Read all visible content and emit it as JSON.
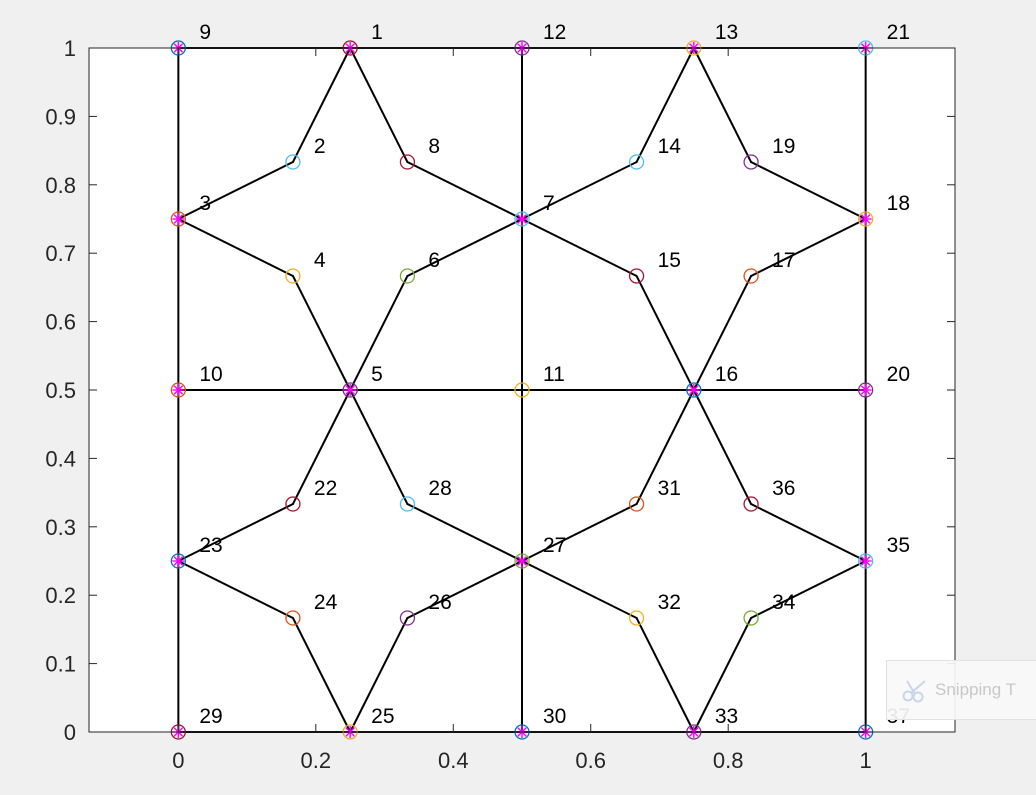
{
  "chart_data": {
    "type": "scatter",
    "title": "",
    "xlabel": "",
    "ylabel": "",
    "xlim": [
      -0.13,
      1.13
    ],
    "ylim": [
      0,
      1
    ],
    "xticks": [
      0,
      0.2,
      0.4,
      0.6,
      0.8,
      1
    ],
    "xtick_labels": [
      "0",
      "0.2",
      "0.4",
      "0.6",
      "0.8",
      "1"
    ],
    "yticks": [
      0,
      0.1,
      0.2,
      0.3,
      0.4,
      0.5,
      0.6,
      0.7,
      0.8,
      0.9,
      1
    ],
    "ytick_labels": [
      "0",
      "0.1",
      "0.2",
      "0.3",
      "0.4",
      "0.5",
      "0.6",
      "0.7",
      "0.8",
      "0.9",
      "1"
    ],
    "grid": false,
    "legend": "none",
    "marker_colors": [
      "#0072BD",
      "#D95319",
      "#EDB120",
      "#7E2F8E",
      "#77AC30",
      "#4DBEEE",
      "#A2142F"
    ],
    "star_color": "#FF00FF",
    "points": [
      {
        "id": "1",
        "x": 0.25,
        "y": 1.0,
        "c": 6,
        "star": true
      },
      {
        "id": "2",
        "x": 0.1667,
        "y": 0.8333,
        "c": 5,
        "star": false
      },
      {
        "id": "3",
        "x": 0.0,
        "y": 0.75,
        "c": 1,
        "star": true
      },
      {
        "id": "4",
        "x": 0.1667,
        "y": 0.6667,
        "c": 2,
        "star": false
      },
      {
        "id": "5",
        "x": 0.25,
        "y": 0.5,
        "c": 3,
        "star": true
      },
      {
        "id": "6",
        "x": 0.3333,
        "y": 0.6667,
        "c": 4,
        "star": false
      },
      {
        "id": "7",
        "x": 0.5,
        "y": 0.75,
        "c": 5,
        "star": true
      },
      {
        "id": "8",
        "x": 0.3333,
        "y": 0.8333,
        "c": 6,
        "star": false
      },
      {
        "id": "9",
        "x": 0.0,
        "y": 1.0,
        "c": 0,
        "star": true
      },
      {
        "id": "10",
        "x": 0.0,
        "y": 0.5,
        "c": 1,
        "star": true
      },
      {
        "id": "11",
        "x": 0.5,
        "y": 0.5,
        "c": 2,
        "star": false
      },
      {
        "id": "12",
        "x": 0.5,
        "y": 1.0,
        "c": 3,
        "star": true
      },
      {
        "id": "13",
        "x": 0.75,
        "y": 1.0,
        "c": 2,
        "star": true
      },
      {
        "id": "14",
        "x": 0.6667,
        "y": 0.8333,
        "c": 5,
        "star": false
      },
      {
        "id": "15",
        "x": 0.6667,
        "y": 0.6667,
        "c": 6,
        "star": false
      },
      {
        "id": "16",
        "x": 0.75,
        "y": 0.5,
        "c": 0,
        "star": true
      },
      {
        "id": "17",
        "x": 0.8333,
        "y": 0.6667,
        "c": 1,
        "star": false
      },
      {
        "id": "18",
        "x": 1.0,
        "y": 0.75,
        "c": 2,
        "star": true
      },
      {
        "id": "19",
        "x": 0.8333,
        "y": 0.8333,
        "c": 3,
        "star": false
      },
      {
        "id": "20",
        "x": 1.0,
        "y": 0.5,
        "c": 3,
        "star": true
      },
      {
        "id": "21",
        "x": 1.0,
        "y": 1.0,
        "c": 5,
        "star": true
      },
      {
        "id": "22",
        "x": 0.1667,
        "y": 0.3333,
        "c": 6,
        "star": false
      },
      {
        "id": "23",
        "x": 0.0,
        "y": 0.25,
        "c": 0,
        "star": true
      },
      {
        "id": "24",
        "x": 0.1667,
        "y": 0.1667,
        "c": 1,
        "star": false
      },
      {
        "id": "25",
        "x": 0.25,
        "y": 0.0,
        "c": 2,
        "star": true
      },
      {
        "id": "26",
        "x": 0.3333,
        "y": 0.1667,
        "c": 3,
        "star": false
      },
      {
        "id": "27",
        "x": 0.5,
        "y": 0.25,
        "c": 4,
        "star": true
      },
      {
        "id": "28",
        "x": 0.3333,
        "y": 0.3333,
        "c": 5,
        "star": false
      },
      {
        "id": "29",
        "x": 0.0,
        "y": 0.0,
        "c": 6,
        "star": true
      },
      {
        "id": "30",
        "x": 0.5,
        "y": 0.0,
        "c": 0,
        "star": true
      },
      {
        "id": "31",
        "x": 0.6667,
        "y": 0.3333,
        "c": 1,
        "star": false
      },
      {
        "id": "32",
        "x": 0.6667,
        "y": 0.1667,
        "c": 2,
        "star": false
      },
      {
        "id": "33",
        "x": 0.75,
        "y": 0.0,
        "c": 3,
        "star": true
      },
      {
        "id": "34",
        "x": 0.8333,
        "y": 0.1667,
        "c": 4,
        "star": false
      },
      {
        "id": "35",
        "x": 1.0,
        "y": 0.25,
        "c": 5,
        "star": true
      },
      {
        "id": "36",
        "x": 0.8333,
        "y": 0.3333,
        "c": 6,
        "star": false
      },
      {
        "id": "37",
        "x": 1.0,
        "y": 0.0,
        "c": 0,
        "star": true
      }
    ],
    "edges": [
      [
        "9",
        "1"
      ],
      [
        "1",
        "12"
      ],
      [
        "12",
        "13"
      ],
      [
        "13",
        "21"
      ],
      [
        "29",
        "25"
      ],
      [
        "25",
        "30"
      ],
      [
        "30",
        "33"
      ],
      [
        "33",
        "37"
      ],
      [
        "9",
        "3"
      ],
      [
        "3",
        "10"
      ],
      [
        "10",
        "23"
      ],
      [
        "23",
        "29"
      ],
      [
        "12",
        "7"
      ],
      [
        "7",
        "11"
      ],
      [
        "11",
        "27"
      ],
      [
        "27",
        "30"
      ],
      [
        "21",
        "18"
      ],
      [
        "18",
        "20"
      ],
      [
        "20",
        "35"
      ],
      [
        "35",
        "37"
      ],
      [
        "10",
        "5"
      ],
      [
        "5",
        "11"
      ],
      [
        "11",
        "16"
      ],
      [
        "16",
        "20"
      ],
      [
        "1",
        "2"
      ],
      [
        "2",
        "3"
      ],
      [
        "3",
        "4"
      ],
      [
        "4",
        "5"
      ],
      [
        "5",
        "6"
      ],
      [
        "6",
        "7"
      ],
      [
        "7",
        "8"
      ],
      [
        "8",
        "1"
      ],
      [
        "13",
        "14"
      ],
      [
        "14",
        "7"
      ],
      [
        "7",
        "15"
      ],
      [
        "15",
        "16"
      ],
      [
        "16",
        "17"
      ],
      [
        "17",
        "18"
      ],
      [
        "18",
        "19"
      ],
      [
        "19",
        "13"
      ],
      [
        "5",
        "22"
      ],
      [
        "22",
        "23"
      ],
      [
        "23",
        "24"
      ],
      [
        "24",
        "25"
      ],
      [
        "25",
        "26"
      ],
      [
        "26",
        "27"
      ],
      [
        "27",
        "28"
      ],
      [
        "28",
        "5"
      ],
      [
        "16",
        "31"
      ],
      [
        "31",
        "27"
      ],
      [
        "27",
        "32"
      ],
      [
        "32",
        "33"
      ],
      [
        "33",
        "34"
      ],
      [
        "34",
        "35"
      ],
      [
        "35",
        "36"
      ],
      [
        "36",
        "16"
      ]
    ]
  },
  "overlay": {
    "snipping_label": "Snipping T",
    "icon": "scissors-icon"
  }
}
